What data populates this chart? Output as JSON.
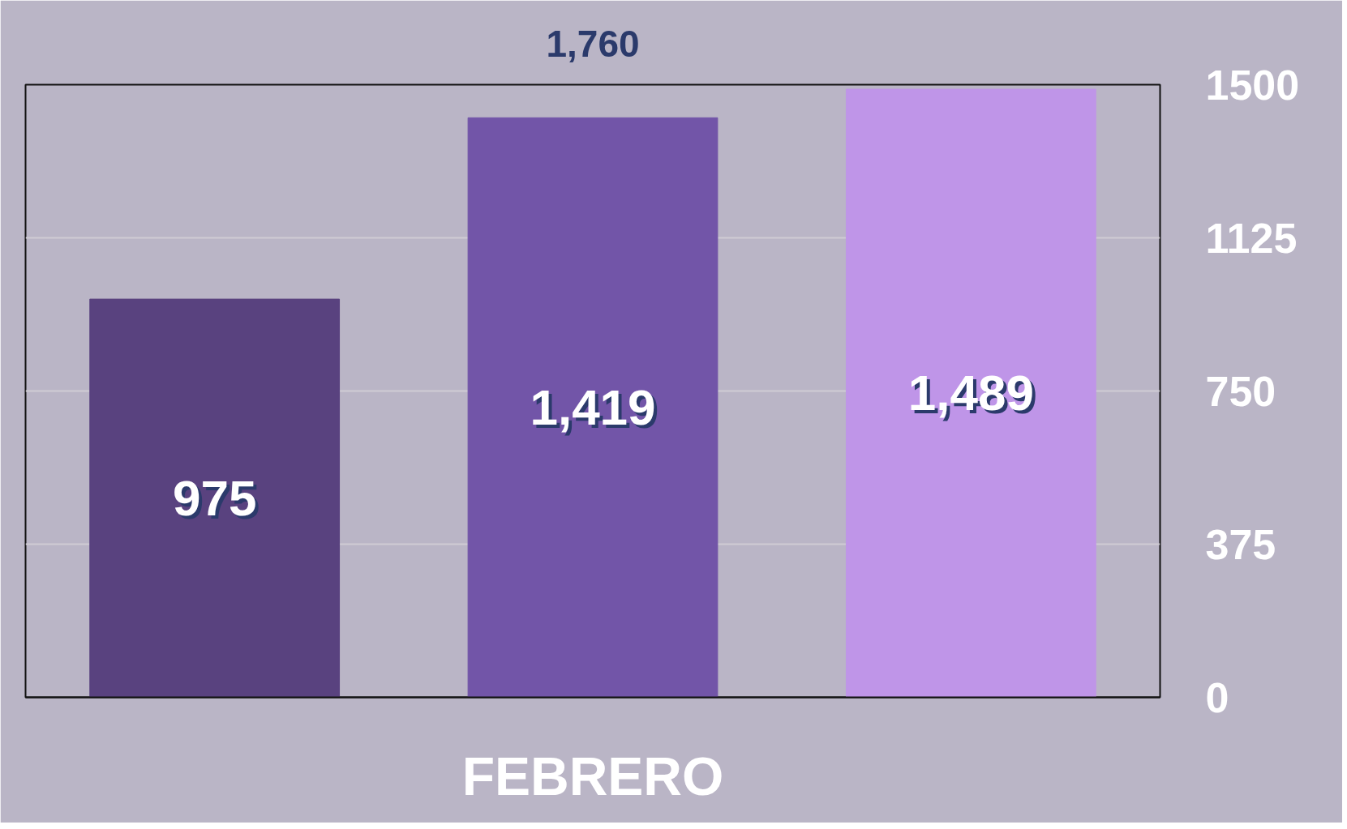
{
  "chart_data": {
    "type": "bar",
    "xlabel": "FEBRERO",
    "categories": [
      null,
      null,
      null
    ],
    "values": [
      975,
      1419,
      1489
    ],
    "colors": [
      "#59427f",
      "#7255a8",
      "#bf95e8"
    ],
    "value_labels": [
      "975",
      "1,419",
      "1,489"
    ],
    "annotations": [
      "1,760"
    ],
    "ylim": [
      0,
      1500
    ],
    "yticks": [
      0,
      375,
      750,
      1125,
      1500
    ],
    "grid": "y"
  }
}
